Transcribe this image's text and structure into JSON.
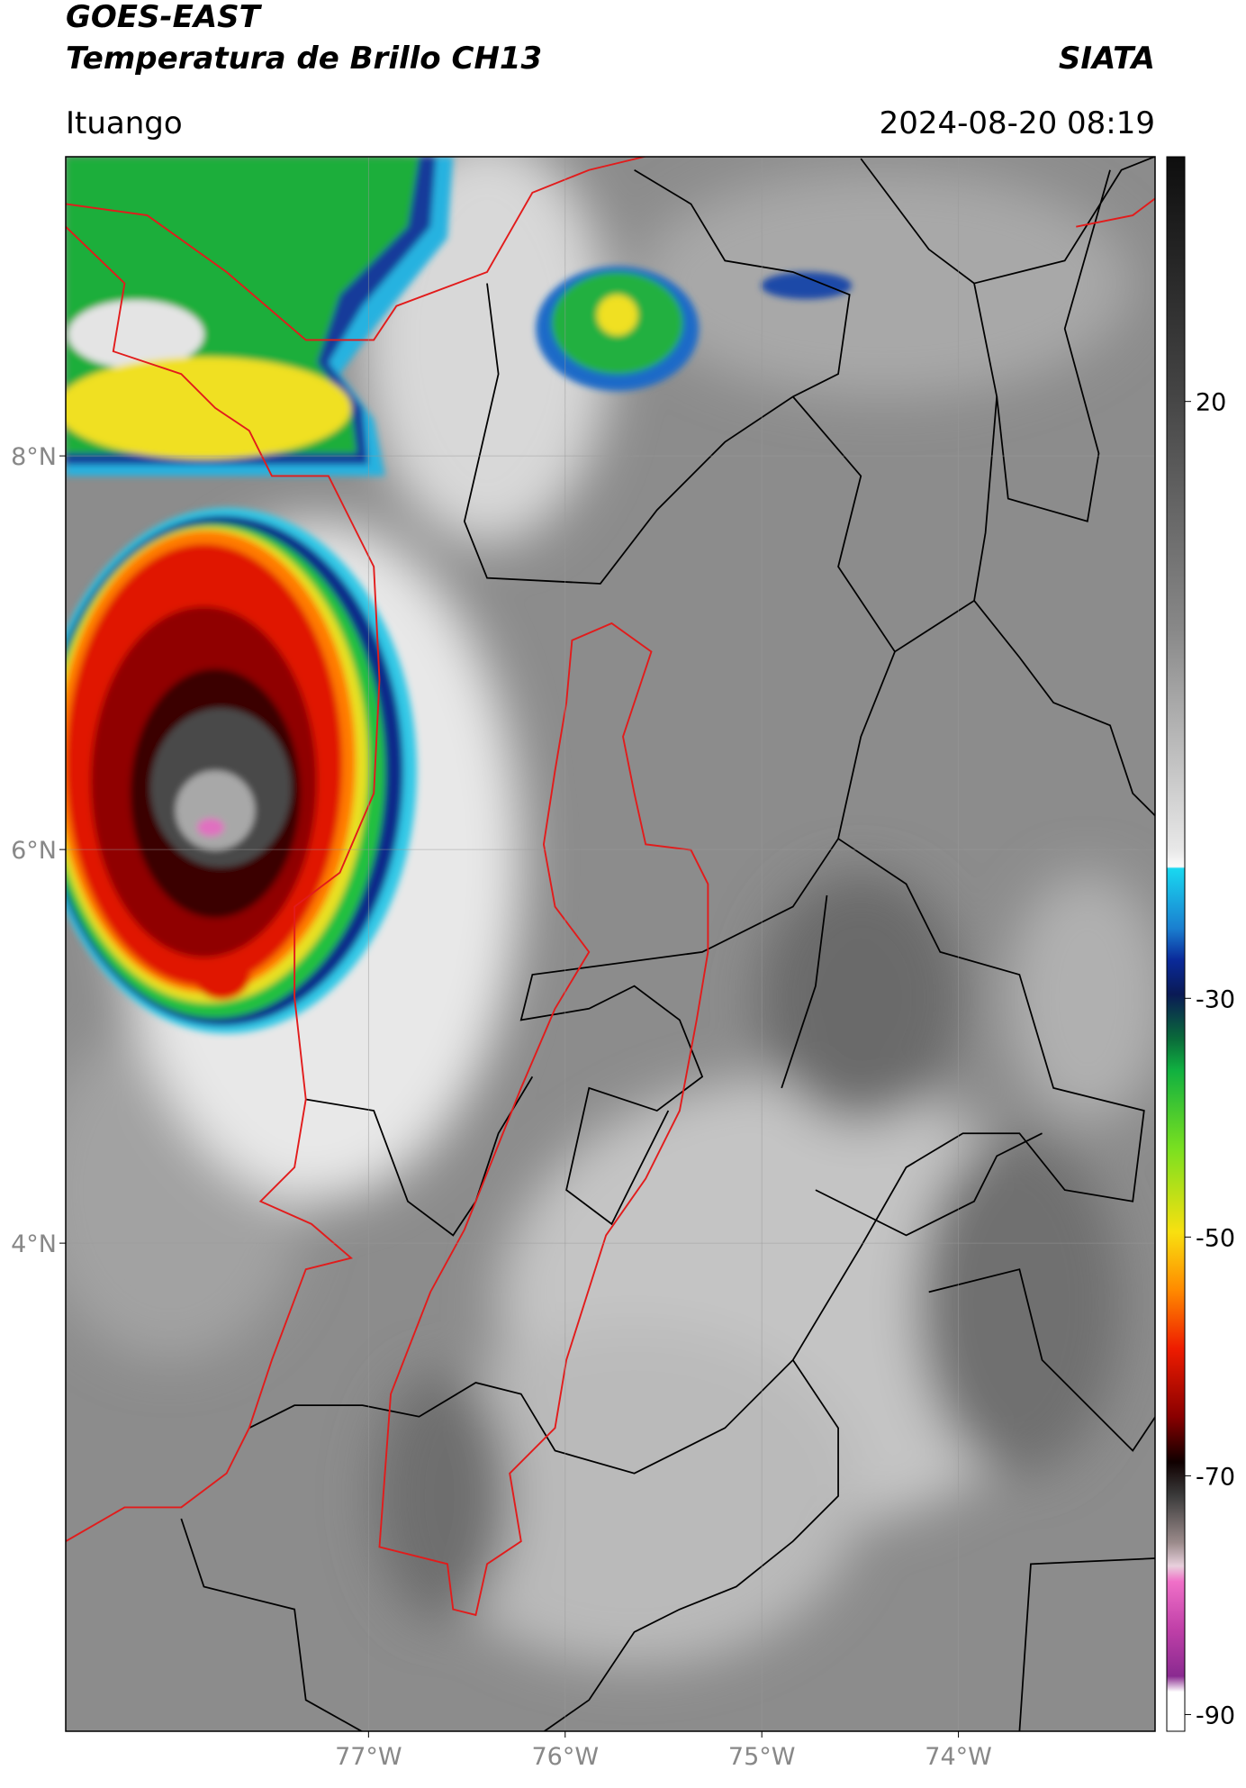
{
  "chart_data": {
    "type": "map",
    "title": "GOES-EAST",
    "subtitle": "Temperatura de Brillo CH13",
    "source": "SIATA",
    "location": "Ituango",
    "datetime": "2024-08-20 08:19",
    "xlim": [
      -78.54,
      -73.0
    ],
    "ylim": [
      1.52,
      9.52
    ],
    "xticks": [
      {
        "value": -77,
        "label": "77°W"
      },
      {
        "value": -76,
        "label": "76°W"
      },
      {
        "value": -75,
        "label": "75°W"
      },
      {
        "value": -74,
        "label": "74°W"
      }
    ],
    "yticks": [
      {
        "value": 4,
        "label": "4°N"
      },
      {
        "value": 6,
        "label": "6°N"
      },
      {
        "value": 8,
        "label": "8°N"
      }
    ],
    "grid": true,
    "colorbar": {
      "clim": [
        -91.4,
        40.5
      ],
      "ticks": [
        -90,
        -70,
        -50,
        -30,
        20
      ]
    }
  }
}
